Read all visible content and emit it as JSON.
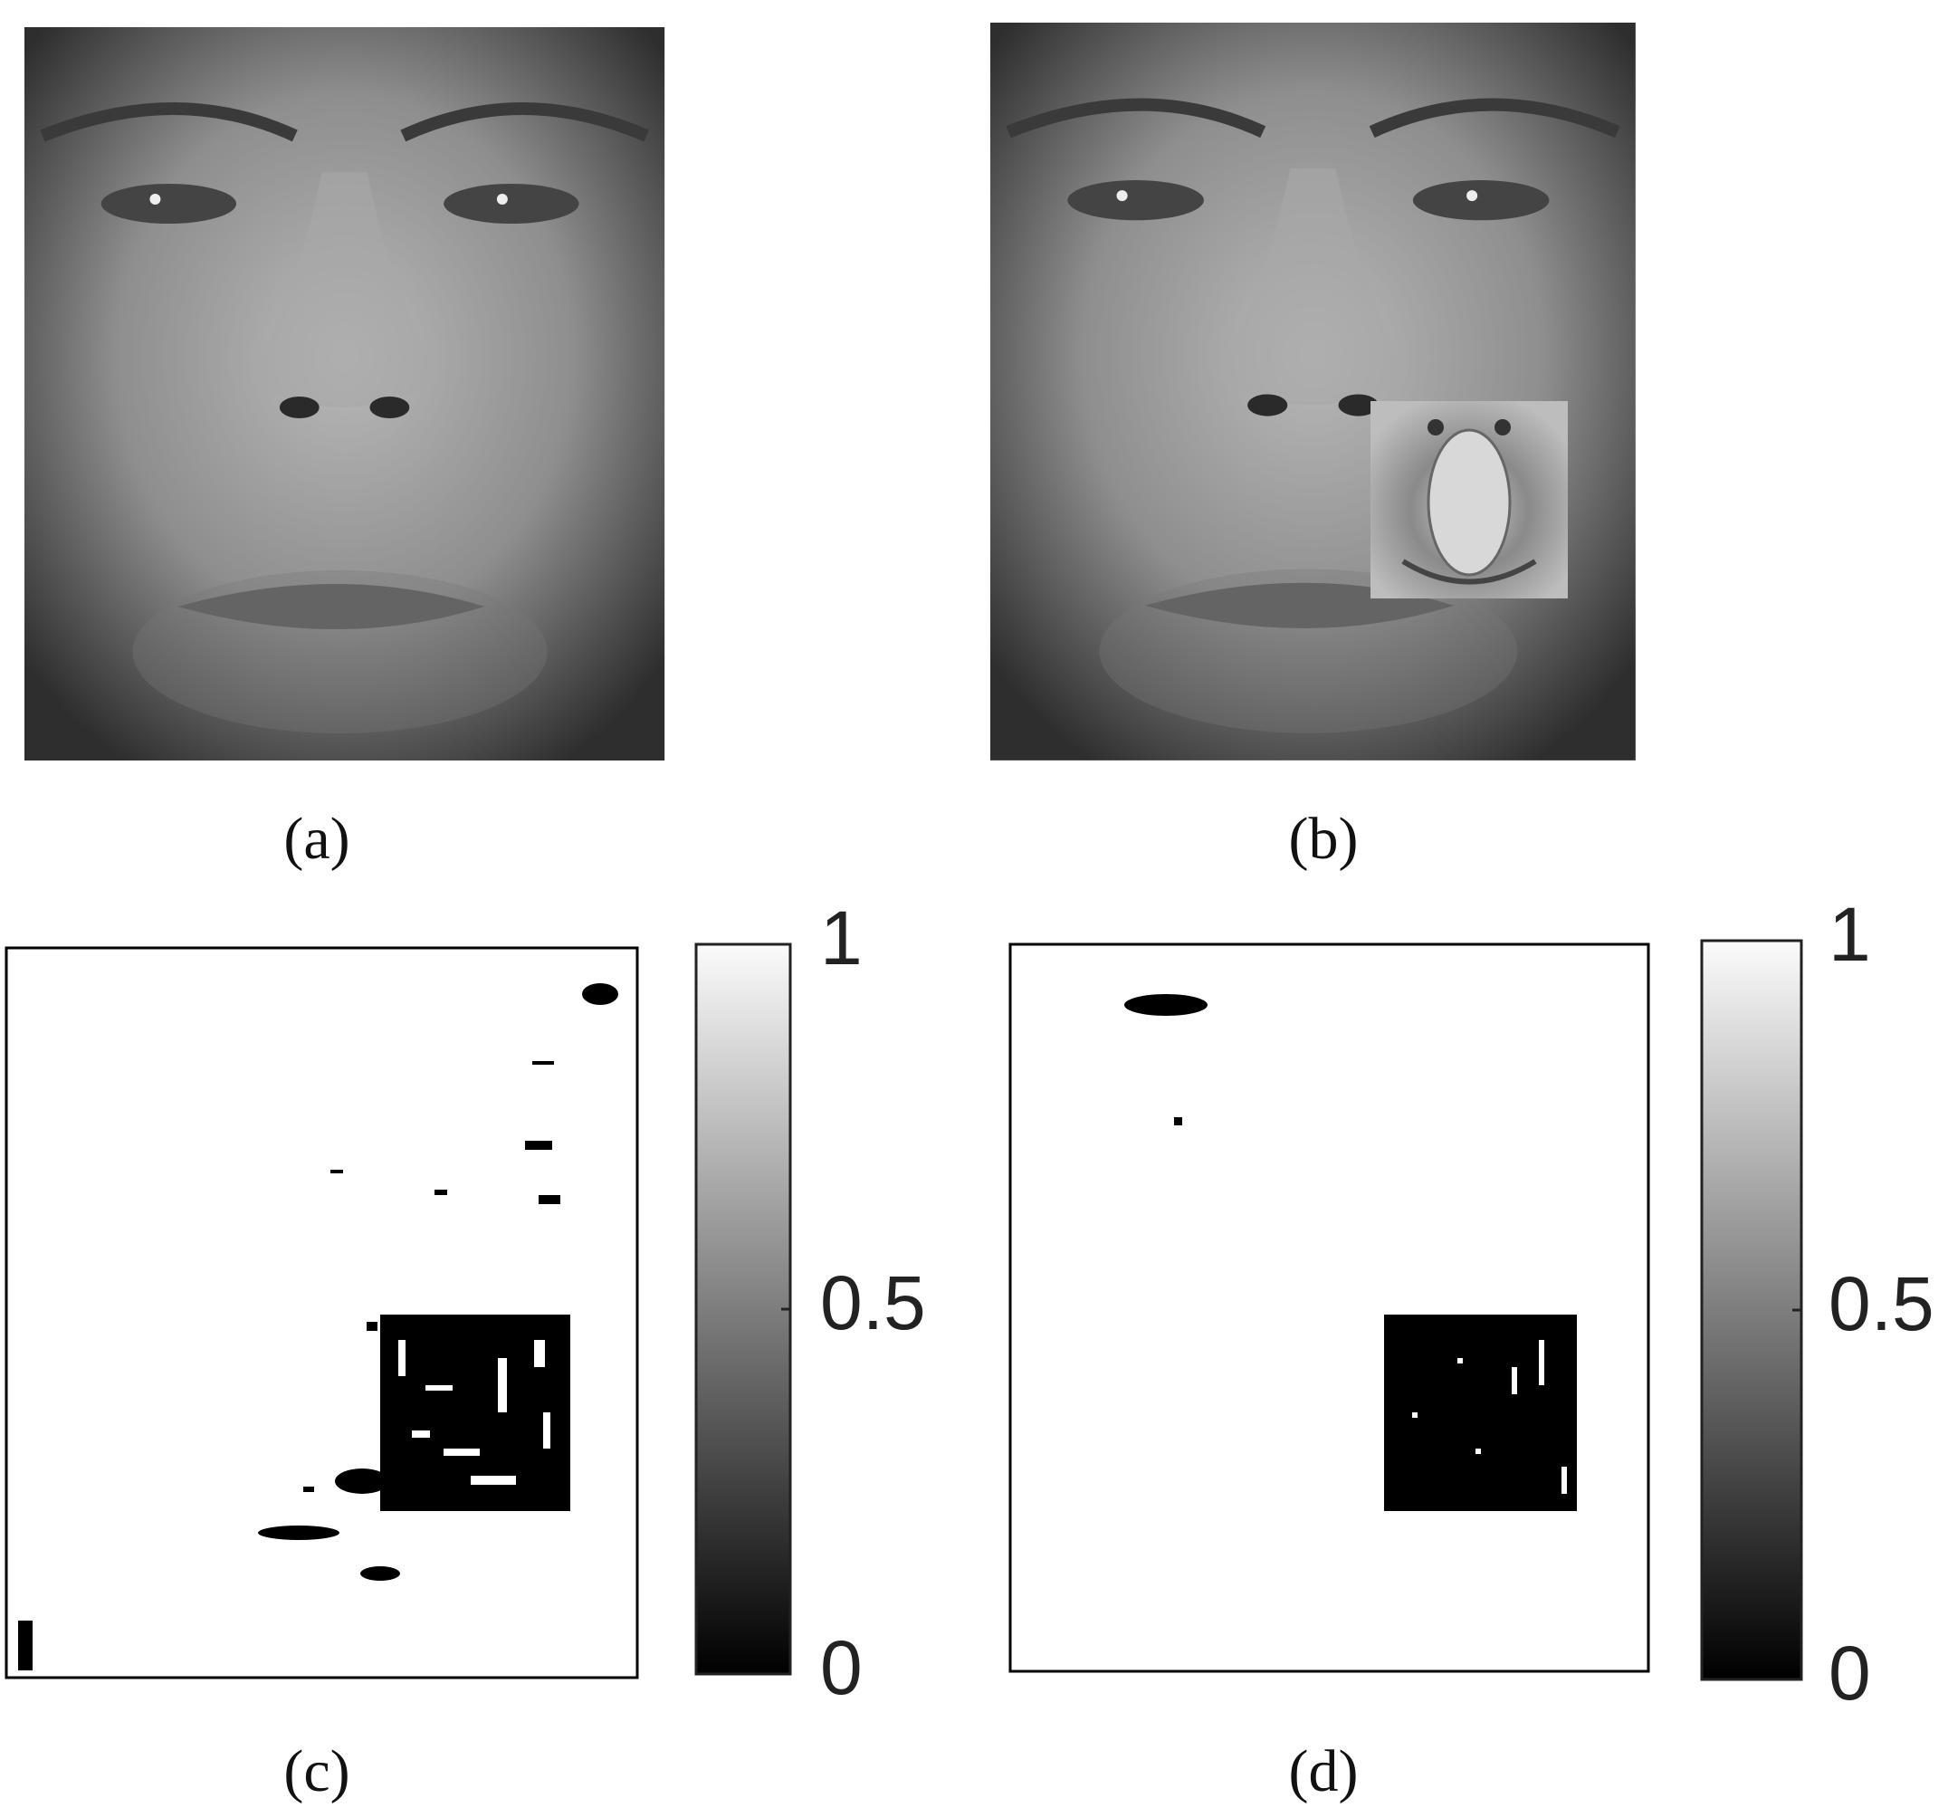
{
  "panels": [
    {
      "caption": "(a)"
    },
    {
      "caption": "(b)"
    },
    {
      "caption": "(c)",
      "colorbar": {
        "ticks": [
          1,
          0.5,
          0
        ]
      }
    },
    {
      "caption": "(d)",
      "colorbar": {
        "ticks": [
          1,
          0.5,
          0
        ]
      }
    }
  ]
}
